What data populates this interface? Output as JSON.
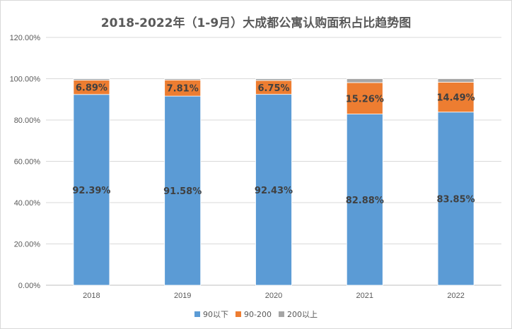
{
  "chart_data": {
    "type": "bar",
    "stacked": true,
    "title": "2018-2022年（1-9月）大成都公寓认购面积占比趋势图",
    "categories": [
      "2018",
      "2019",
      "2020",
      "2021",
      "2022"
    ],
    "series": [
      {
        "name": "90以下",
        "color": "#5b9bd5",
        "values": [
          92.39,
          91.58,
          92.43,
          82.88,
          83.85
        ],
        "labels": [
          "92.39%",
          "91.58%",
          "92.43%",
          "82.88%",
          "83.85%"
        ]
      },
      {
        "name": "90-200",
        "color": "#ed7d31",
        "values": [
          6.89,
          7.81,
          6.75,
          15.26,
          14.49
        ],
        "labels": [
          "6.89%",
          "7.81%",
          "6.75%",
          "15.26%",
          "14.49%"
        ]
      },
      {
        "name": "200以上",
        "color": "#a5a5a5",
        "values": [
          0.72,
          0.61,
          0.82,
          1.86,
          1.66
        ],
        "labels": [
          "",
          "",
          "",
          "",
          ""
        ]
      }
    ],
    "y_ticks": [
      0,
      20,
      40,
      60,
      80,
      100,
      120
    ],
    "y_tick_labels": [
      "0.00%",
      "20.00%",
      "40.00%",
      "60.00%",
      "80.00%",
      "100.00%",
      "120.00%"
    ],
    "ylim": [
      0,
      120
    ],
    "xlabel": "",
    "ylabel": "",
    "grid": true,
    "legend_position": "bottom-center"
  }
}
